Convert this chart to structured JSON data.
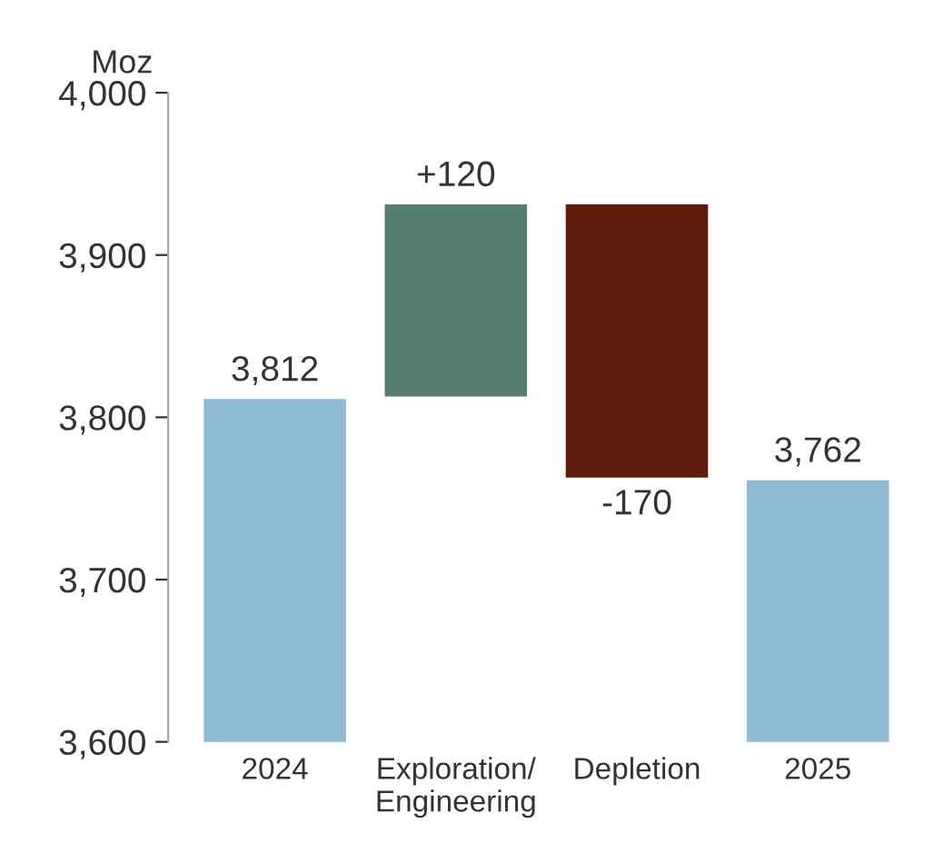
{
  "chart_data": {
    "type": "bar",
    "ylabel": "Moz",
    "categories": [
      "2024",
      "Exploration/\nEngineering",
      "Depletion",
      "2025"
    ],
    "values": [
      3812,
      120,
      -170,
      3762
    ],
    "base": [
      null,
      3812,
      3932,
      null
    ],
    "colors": [
      "#8fbad3",
      "#567d72",
      "#5e1c0c",
      "#8fbad3"
    ],
    "value_labels": [
      "3,812",
      "+120",
      "-170",
      "3,762"
    ],
    "ylim": [
      3600,
      4000
    ],
    "yticks": [
      {
        "value": 3600,
        "label": "3,600"
      },
      {
        "value": 3700,
        "label": "3,700"
      },
      {
        "value": 3800,
        "label": "3,800"
      },
      {
        "value": 3900,
        "label": "3,900"
      },
      {
        "value": 4000,
        "label": "4,000"
      }
    ],
    "grid": false,
    "legend": false
  }
}
